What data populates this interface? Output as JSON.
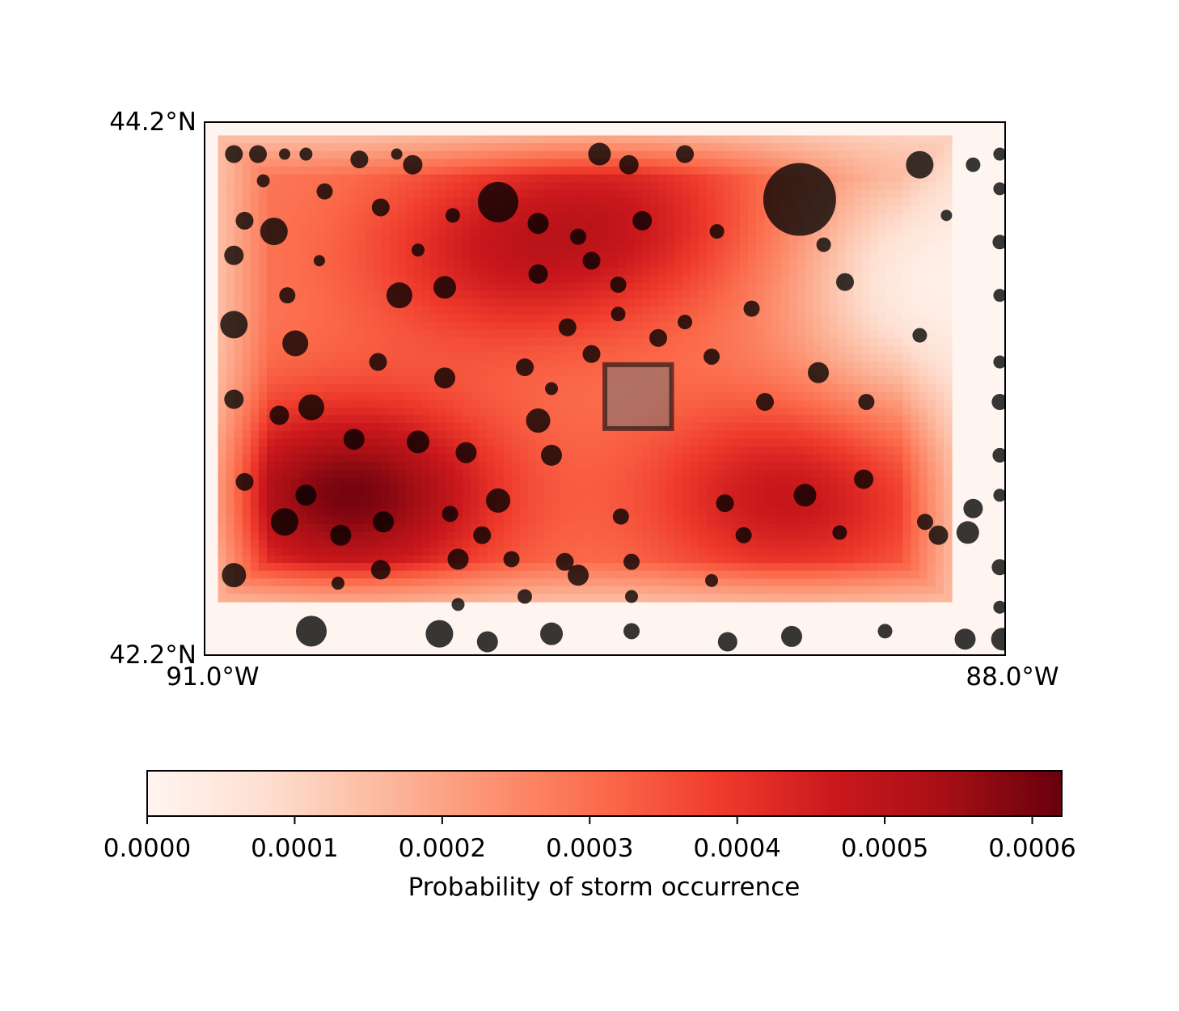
{
  "chart_data": {
    "type": "heatmap",
    "title": "",
    "map": {
      "lon_range": [
        -91.0,
        -88.0
      ],
      "lat_range": [
        42.2,
        44.2
      ],
      "x_tick_labels": [
        "91.0°W",
        "88.0°W"
      ],
      "y_tick_labels": [
        "44.2°N",
        "42.2°N"
      ]
    },
    "heatmap": {
      "colormap": "Reds",
      "hotspots": [
        {
          "lon": -90.45,
          "lat": 42.8,
          "prob": 0.00062
        },
        {
          "lon": -89.9,
          "lat": 43.7,
          "prob": 0.00045
        },
        {
          "lon": -88.8,
          "lat": 42.8,
          "prob": 0.0005
        },
        {
          "lon": -89.4,
          "lat": 43.85,
          "prob": 0.00044
        }
      ]
    },
    "colorbar": {
      "label": "Probability of storm occurrence",
      "min": 0.0,
      "max": 0.00062,
      "tick_values": [
        0.0,
        0.0001,
        0.0002,
        0.0003,
        0.0004,
        0.0005,
        0.0006
      ],
      "tick_labels": [
        "0.0000",
        "0.0001",
        "0.0002",
        "0.0003",
        "0.0004",
        "0.0005",
        "0.0006"
      ]
    },
    "highlight_box": {
      "lon_range": [
        -89.5,
        -89.25
      ],
      "lat_range": [
        43.05,
        43.29
      ]
    },
    "storm_points": [
      {
        "lon": -90.89,
        "lat": 44.08,
        "r": 11
      },
      {
        "lon": -90.8,
        "lat": 44.08,
        "r": 11
      },
      {
        "lon": -90.7,
        "lat": 44.08,
        "r": 7
      },
      {
        "lon": -90.62,
        "lat": 44.08,
        "r": 8
      },
      {
        "lon": -90.42,
        "lat": 44.06,
        "r": 11
      },
      {
        "lon": -90.28,
        "lat": 44.08,
        "r": 7
      },
      {
        "lon": -90.22,
        "lat": 44.04,
        "r": 12
      },
      {
        "lon": -89.9,
        "lat": 43.9,
        "r": 25
      },
      {
        "lon": -89.52,
        "lat": 44.08,
        "r": 14
      },
      {
        "lon": -89.41,
        "lat": 44.04,
        "r": 12
      },
      {
        "lon": -89.2,
        "lat": 44.08,
        "r": 11
      },
      {
        "lon": -88.77,
        "lat": 43.91,
        "r": 45
      },
      {
        "lon": -88.32,
        "lat": 44.04,
        "r": 17
      },
      {
        "lon": -88.12,
        "lat": 44.04,
        "r": 9
      },
      {
        "lon": -90.85,
        "lat": 43.83,
        "r": 11
      },
      {
        "lon": -90.74,
        "lat": 43.79,
        "r": 17
      },
      {
        "lon": -90.55,
        "lat": 43.94,
        "r": 10
      },
      {
        "lon": -90.34,
        "lat": 43.88,
        "r": 11
      },
      {
        "lon": -90.07,
        "lat": 43.85,
        "r": 9
      },
      {
        "lon": -89.75,
        "lat": 43.82,
        "r": 13
      },
      {
        "lon": -89.6,
        "lat": 43.77,
        "r": 10
      },
      {
        "lon": -89.36,
        "lat": 43.83,
        "r": 12
      },
      {
        "lon": -89.08,
        "lat": 43.79,
        "r": 9
      },
      {
        "lon": -88.68,
        "lat": 43.74,
        "r": 9
      },
      {
        "lon": -88.22,
        "lat": 43.85,
        "r": 7
      },
      {
        "lon": -90.89,
        "lat": 43.7,
        "r": 12
      },
      {
        "lon": -90.69,
        "lat": 43.55,
        "r": 10
      },
      {
        "lon": -90.57,
        "lat": 43.68,
        "r": 7
      },
      {
        "lon": -90.27,
        "lat": 43.55,
        "r": 16
      },
      {
        "lon": -90.1,
        "lat": 43.58,
        "r": 14
      },
      {
        "lon": -89.75,
        "lat": 43.63,
        "r": 12
      },
      {
        "lon": -89.55,
        "lat": 43.68,
        "r": 11
      },
      {
        "lon": -89.45,
        "lat": 43.59,
        "r": 10
      },
      {
        "lon": -89.2,
        "lat": 43.45,
        "r": 9
      },
      {
        "lon": -88.95,
        "lat": 43.5,
        "r": 10
      },
      {
        "lon": -88.6,
        "lat": 43.6,
        "r": 11
      },
      {
        "lon": -88.32,
        "lat": 43.4,
        "r": 9
      },
      {
        "lon": -90.89,
        "lat": 43.44,
        "r": 17
      },
      {
        "lon": -90.66,
        "lat": 43.37,
        "r": 16
      },
      {
        "lon": -90.35,
        "lat": 43.3,
        "r": 11
      },
      {
        "lon": -90.1,
        "lat": 43.24,
        "r": 13
      },
      {
        "lon": -89.8,
        "lat": 43.28,
        "r": 11
      },
      {
        "lon": -89.55,
        "lat": 43.33,
        "r": 11
      },
      {
        "lon": -89.3,
        "lat": 43.39,
        "r": 11
      },
      {
        "lon": -89.1,
        "lat": 43.32,
        "r": 10
      },
      {
        "lon": -88.9,
        "lat": 43.15,
        "r": 11
      },
      {
        "lon": -88.7,
        "lat": 43.26,
        "r": 13
      },
      {
        "lon": -88.52,
        "lat": 43.15,
        "r": 10
      },
      {
        "lon": -90.89,
        "lat": 43.16,
        "r": 12
      },
      {
        "lon": -90.72,
        "lat": 43.1,
        "r": 12
      },
      {
        "lon": -90.6,
        "lat": 43.13,
        "r": 16
      },
      {
        "lon": -90.44,
        "lat": 43.01,
        "r": 13
      },
      {
        "lon": -90.2,
        "lat": 43.0,
        "r": 14
      },
      {
        "lon": -90.02,
        "lat": 42.96,
        "r": 13
      },
      {
        "lon": -89.75,
        "lat": 43.08,
        "r": 15
      },
      {
        "lon": -89.7,
        "lat": 42.95,
        "r": 13
      },
      {
        "lon": -89.9,
        "lat": 42.78,
        "r": 15
      },
      {
        "lon": -90.85,
        "lat": 42.85,
        "r": 11
      },
      {
        "lon": -90.62,
        "lat": 42.8,
        "r": 13
      },
      {
        "lon": -90.33,
        "lat": 42.7,
        "r": 13
      },
      {
        "lon": -90.08,
        "lat": 42.73,
        "r": 10
      },
      {
        "lon": -89.96,
        "lat": 42.65,
        "r": 11
      },
      {
        "lon": -89.6,
        "lat": 42.5,
        "r": 13
      },
      {
        "lon": -89.44,
        "lat": 42.72,
        "r": 10
      },
      {
        "lon": -89.05,
        "lat": 42.77,
        "r": 11
      },
      {
        "lon": -88.75,
        "lat": 42.8,
        "r": 14
      },
      {
        "lon": -88.53,
        "lat": 42.86,
        "r": 12
      },
      {
        "lon": -88.3,
        "lat": 42.7,
        "r": 10
      },
      {
        "lon": -88.12,
        "lat": 42.75,
        "r": 12
      },
      {
        "lon": -90.7,
        "lat": 42.7,
        "r": 17
      },
      {
        "lon": -90.49,
        "lat": 42.65,
        "r": 13
      },
      {
        "lon": -90.34,
        "lat": 42.52,
        "r": 12
      },
      {
        "lon": -90.05,
        "lat": 42.56,
        "r": 13
      },
      {
        "lon": -89.85,
        "lat": 42.56,
        "r": 10
      },
      {
        "lon": -89.65,
        "lat": 42.55,
        "r": 11
      },
      {
        "lon": -89.4,
        "lat": 42.55,
        "r": 10
      },
      {
        "lon": -88.98,
        "lat": 42.65,
        "r": 10
      },
      {
        "lon": -88.62,
        "lat": 42.66,
        "r": 9
      },
      {
        "lon": -88.25,
        "lat": 42.65,
        "r": 12
      },
      {
        "lon": -88.14,
        "lat": 42.66,
        "r": 14
      },
      {
        "lon": -90.89,
        "lat": 42.5,
        "r": 15
      },
      {
        "lon": -90.6,
        "lat": 42.29,
        "r": 19
      },
      {
        "lon": -90.12,
        "lat": 42.28,
        "r": 17
      },
      {
        "lon": -89.94,
        "lat": 42.25,
        "r": 13
      },
      {
        "lon": -89.7,
        "lat": 42.28,
        "r": 14
      },
      {
        "lon": -89.4,
        "lat": 42.29,
        "r": 10
      },
      {
        "lon": -89.04,
        "lat": 42.25,
        "r": 12
      },
      {
        "lon": -88.8,
        "lat": 42.27,
        "r": 13
      },
      {
        "lon": -88.45,
        "lat": 42.29,
        "r": 9
      },
      {
        "lon": -88.15,
        "lat": 42.26,
        "r": 13
      },
      {
        "lon": -88.01,
        "lat": 42.26,
        "r": 14
      },
      {
        "lon": -88.02,
        "lat": 44.08,
        "r": 8
      },
      {
        "lon": -88.02,
        "lat": 43.95,
        "r": 8
      },
      {
        "lon": -88.02,
        "lat": 43.75,
        "r": 9
      },
      {
        "lon": -88.02,
        "lat": 43.55,
        "r": 8
      },
      {
        "lon": -88.02,
        "lat": 43.3,
        "r": 8
      },
      {
        "lon": -88.02,
        "lat": 43.15,
        "r": 10
      },
      {
        "lon": -88.02,
        "lat": 42.95,
        "r": 9
      },
      {
        "lon": -88.02,
        "lat": 42.8,
        "r": 8
      },
      {
        "lon": -88.02,
        "lat": 42.53,
        "r": 10
      },
      {
        "lon": -88.02,
        "lat": 42.38,
        "r": 8
      },
      {
        "lon": -89.64,
        "lat": 43.43,
        "r": 11
      },
      {
        "lon": -89.45,
        "lat": 43.48,
        "r": 9
      },
      {
        "lon": -89.7,
        "lat": 43.2,
        "r": 8
      },
      {
        "lon": -89.8,
        "lat": 42.42,
        "r": 9
      },
      {
        "lon": -89.4,
        "lat": 42.42,
        "r": 8
      },
      {
        "lon": -89.1,
        "lat": 42.48,
        "r": 8
      },
      {
        "lon": -90.5,
        "lat": 42.47,
        "r": 8
      },
      {
        "lon": -90.05,
        "lat": 42.39,
        "r": 8
      },
      {
        "lon": -90.78,
        "lat": 43.98,
        "r": 8
      },
      {
        "lon": -90.2,
        "lat": 43.72,
        "r": 8
      }
    ]
  }
}
